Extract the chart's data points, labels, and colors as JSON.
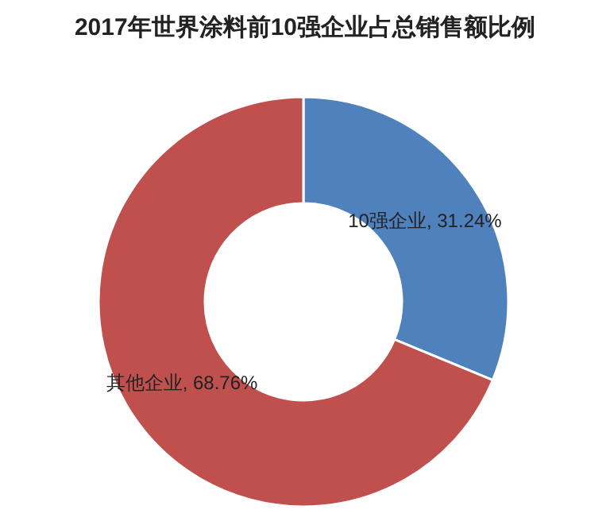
{
  "chart_data": {
    "type": "donut",
    "title": "2017年世界涂料前10强企业占总销售额比例",
    "categories": [
      "10强企业",
      "其他企业"
    ],
    "values": [
      31.24,
      68.76
    ],
    "colors": [
      "#4f81bd",
      "#c0504d"
    ],
    "value_labels": [
      ", 31.24%",
      ", 68.76%"
    ]
  }
}
